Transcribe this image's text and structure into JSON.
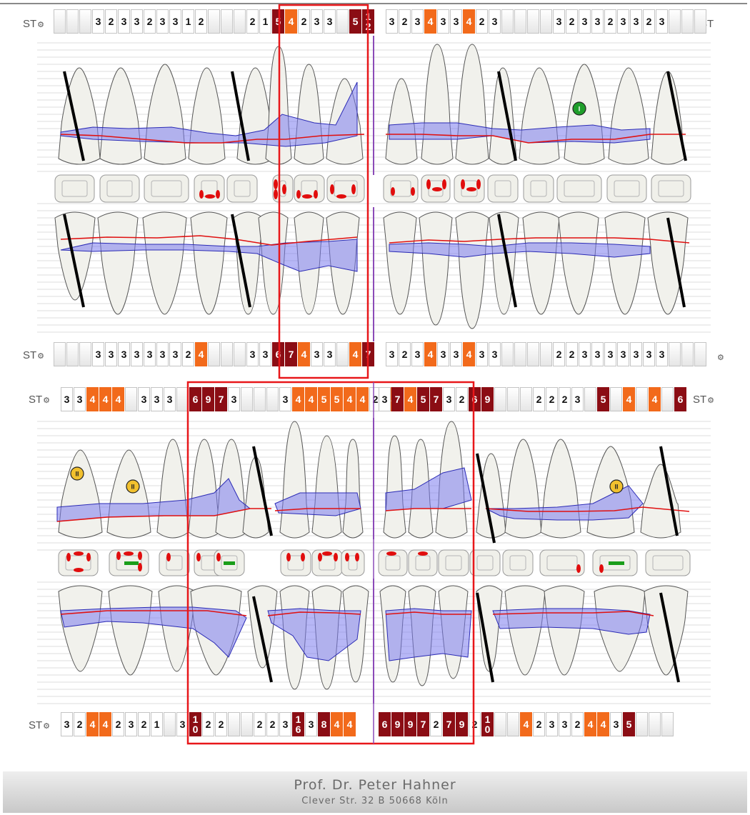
{
  "st_label": "ST",
  "footer": {
    "name": "Prof. Dr. Peter Hahner",
    "address": "Clever Str. 32 B 50668 Köln"
  },
  "colors": {
    "moderate_depth": "#f26a1b",
    "deep_pocket": "#8b0d14",
    "attachment_area": "#7b7bef",
    "gingival_line": "#e01010",
    "selection_frame": "#e8171a",
    "midline": "#8b4bb8",
    "furcation_grade_1": "#1f9e2b",
    "furcation_grade_2": "#f2c12e",
    "bleeding_point": "#e10d0d",
    "suppuration_bar": "#1a9e1a"
  },
  "icons": [
    "settings-gear-icon",
    "furcation-grade-1-icon",
    "furcation-grade-2-icon"
  ],
  "furcation_markers": [
    {
      "label": "I",
      "grade": 1
    },
    {
      "label": "II",
      "grade": 2
    },
    {
      "label": "II",
      "grade": 2
    },
    {
      "label": "II",
      "grade": 2
    }
  ],
  "upper_jaw": {
    "buccal_pockets": [
      [
        [
          "",
          ""
        ],
        [
          "",
          ""
        ],
        [
          "",
          ""
        ],
        [
          "3",
          "v"
        ],
        [
          "2",
          "v"
        ],
        [
          "3",
          "v"
        ],
        [
          "3",
          "v"
        ],
        [
          "2",
          "v"
        ],
        [
          "3",
          "v"
        ],
        [
          "3",
          "v"
        ],
        [
          "1",
          "v"
        ],
        [
          "2",
          "v"
        ],
        [
          "",
          ""
        ],
        [
          "",
          ""
        ],
        [
          "",
          ""
        ],
        [
          "2",
          "v"
        ],
        [
          "1",
          "v"
        ],
        [
          "5",
          "r"
        ],
        [
          "4",
          "o"
        ],
        [
          "2",
          "v"
        ],
        [
          "3",
          "v"
        ],
        [
          "3",
          "v"
        ],
        [
          "",
          ""
        ],
        [
          "5",
          "r"
        ],
        [
          "12",
          "r"
        ]
      ],
      [
        [
          "3",
          "v"
        ],
        [
          "2",
          "v"
        ],
        [
          "3",
          "v"
        ],
        [
          "4",
          "o"
        ],
        [
          "3",
          "v"
        ],
        [
          "3",
          "v"
        ],
        [
          "4",
          "o"
        ],
        [
          "2",
          "v"
        ],
        [
          "3",
          "v"
        ],
        [
          "",
          ""
        ],
        [
          "",
          ""
        ],
        [
          "",
          ""
        ],
        [
          "",
          ""
        ],
        [
          "3",
          "v"
        ],
        [
          "2",
          "v"
        ],
        [
          "3",
          "v"
        ],
        [
          "3",
          "v"
        ],
        [
          "2",
          "v"
        ],
        [
          "3",
          "v"
        ],
        [
          "3",
          "v"
        ],
        [
          "2",
          "v"
        ],
        [
          "3",
          "v"
        ],
        [
          "",
          ""
        ],
        [
          "",
          ""
        ],
        [
          "",
          ""
        ]
      ]
    ],
    "palatal_pockets": [
      [
        [
          "",
          ""
        ],
        [
          "",
          ""
        ],
        [
          "",
          ""
        ],
        [
          "3",
          "v"
        ],
        [
          "3",
          "v"
        ],
        [
          "3",
          "v"
        ],
        [
          "3",
          "v"
        ],
        [
          "3",
          "v"
        ],
        [
          "3",
          "v"
        ],
        [
          "3",
          "v"
        ],
        [
          "2",
          "v"
        ],
        [
          "4",
          "o"
        ],
        [
          "",
          ""
        ],
        [
          "",
          ""
        ],
        [
          "",
          ""
        ],
        [
          "3",
          "v"
        ],
        [
          "3",
          "v"
        ],
        [
          "6",
          "r"
        ],
        [
          "7",
          "r"
        ],
        [
          "4",
          "o"
        ],
        [
          "3",
          "v"
        ],
        [
          "3",
          "v"
        ],
        [
          "",
          ""
        ],
        [
          "4",
          "o"
        ],
        [
          "7",
          "r"
        ]
      ],
      [
        [
          "3",
          "v"
        ],
        [
          "2",
          "v"
        ],
        [
          "3",
          "v"
        ],
        [
          "4",
          "o"
        ],
        [
          "3",
          "v"
        ],
        [
          "3",
          "v"
        ],
        [
          "4",
          "o"
        ],
        [
          "3",
          "v"
        ],
        [
          "3",
          "v"
        ],
        [
          "",
          ""
        ],
        [
          "",
          ""
        ],
        [
          "",
          ""
        ],
        [
          "",
          ""
        ],
        [
          "2",
          "v"
        ],
        [
          "2",
          "v"
        ],
        [
          "3",
          "v"
        ],
        [
          "3",
          "v"
        ],
        [
          "3",
          "v"
        ],
        [
          "3",
          "v"
        ],
        [
          "3",
          "v"
        ],
        [
          "3",
          "v"
        ],
        [
          "3",
          "v"
        ],
        [
          "",
          ""
        ],
        [
          "",
          ""
        ],
        [
          "",
          ""
        ]
      ]
    ]
  },
  "lower_jaw": {
    "buccal_pockets": [
      [
        [
          "3",
          "v"
        ],
        [
          "3",
          "v"
        ],
        [
          "4",
          "o"
        ],
        [
          "4",
          "o"
        ],
        [
          "4",
          "o"
        ],
        [
          "",
          ""
        ],
        [
          "3",
          "v"
        ],
        [
          "3",
          "v"
        ],
        [
          "3",
          "v"
        ],
        [
          "",
          ""
        ],
        [
          "6",
          "r"
        ],
        [
          "9",
          "r"
        ],
        [
          "7",
          "r"
        ],
        [
          "3",
          "v"
        ],
        [
          "",
          ""
        ],
        [
          "",
          ""
        ],
        [
          "",
          ""
        ],
        [
          "3",
          "v"
        ],
        [
          "4",
          "o"
        ],
        [
          "4",
          "o"
        ],
        [
          "5",
          "o"
        ],
        [
          "5",
          "o"
        ],
        [
          "4",
          "o"
        ],
        [
          "4",
          "o"
        ],
        [
          "2",
          "v"
        ],
        [
          "4",
          "o"
        ]
      ],
      [
        [
          "3",
          "v"
        ],
        [
          "7",
          "r"
        ],
        [
          "4",
          "o"
        ],
        [
          "5",
          "r"
        ],
        [
          "7",
          "r"
        ],
        [
          "3",
          "v"
        ],
        [
          "2",
          "v"
        ],
        [
          "6",
          "r"
        ],
        [
          "9",
          "r"
        ],
        [
          "",
          ""
        ],
        [
          "",
          ""
        ],
        [
          "",
          ""
        ],
        [
          "2",
          "v"
        ],
        [
          "2",
          "v"
        ],
        [
          "2",
          "v"
        ],
        [
          "3",
          "v"
        ],
        [
          "",
          ""
        ],
        [
          "5",
          "r"
        ],
        [
          "",
          ""
        ],
        [
          "4",
          "o"
        ],
        [
          "",
          ""
        ],
        [
          "4",
          "o"
        ],
        [
          "",
          ""
        ],
        [
          "6",
          "r"
        ]
      ]
    ],
    "lingual_pockets": [
      [
        [
          "3",
          "v"
        ],
        [
          "2",
          "v"
        ],
        [
          "4",
          "o"
        ],
        [
          "4",
          "o"
        ],
        [
          "2",
          "v"
        ],
        [
          "3",
          "v"
        ],
        [
          "2",
          "v"
        ],
        [
          "1",
          "v"
        ],
        [
          "",
          ""
        ],
        [
          "3",
          "v"
        ],
        [
          "10",
          "r"
        ],
        [
          "2",
          "v"
        ],
        [
          "2",
          "v"
        ],
        [
          "",
          ""
        ],
        [
          "",
          ""
        ],
        [
          "2",
          "v"
        ],
        [
          "2",
          "v"
        ],
        [
          "3",
          "v"
        ],
        [
          "16",
          "r"
        ],
        [
          "3",
          "v"
        ],
        [
          "8",
          "r"
        ],
        [
          "4",
          "o"
        ],
        [
          "4",
          "o"
        ]
      ],
      [
        [
          "6",
          "r"
        ],
        [
          "9",
          "r"
        ],
        [
          "9",
          "r"
        ],
        [
          "7",
          "r"
        ],
        [
          "2",
          "v"
        ],
        [
          "7",
          "r"
        ],
        [
          "9",
          "r"
        ],
        [
          "2",
          "v"
        ],
        [
          "10",
          "r"
        ],
        [
          "",
          ""
        ],
        [
          "",
          ""
        ],
        [
          "4",
          "o"
        ],
        [
          "2",
          "v"
        ],
        [
          "3",
          "v"
        ],
        [
          "3",
          "v"
        ],
        [
          "2",
          "v"
        ],
        [
          "4",
          "o"
        ],
        [
          "4",
          "o"
        ],
        [
          "3",
          "v"
        ],
        [
          "5",
          "r"
        ],
        [
          "",
          ""
        ],
        [
          "",
          ""
        ],
        [
          "",
          ""
        ]
      ]
    ]
  }
}
